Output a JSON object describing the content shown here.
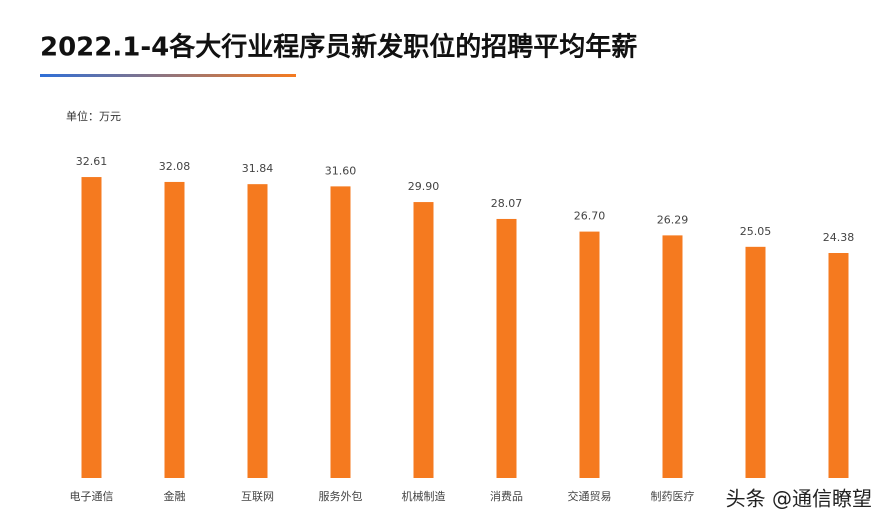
{
  "chart_data": {
    "type": "bar",
    "title": "2022.1-4各大行业程序员新发职位的招聘平均年薪",
    "unit_label": "单位：万元",
    "categories": [
      "电子通信",
      "金融",
      "互联网",
      "服务外包",
      "机械制造",
      "消费品",
      "交通贸易",
      "制药医疗",
      null,
      null
    ],
    "values": [
      32.61,
      32.08,
      31.84,
      31.6,
      29.9,
      28.07,
      26.7,
      26.29,
      25.05,
      24.38
    ],
    "value_labels": [
      "32.61",
      "32.08",
      "31.84",
      "31.60",
      "29.90",
      "28.07",
      "26.70",
      "26.29",
      "25.05",
      "24.38"
    ],
    "color": "#f57a1f",
    "ylim": [
      0,
      35
    ],
    "watermark": "头条 @通信瞭望"
  }
}
